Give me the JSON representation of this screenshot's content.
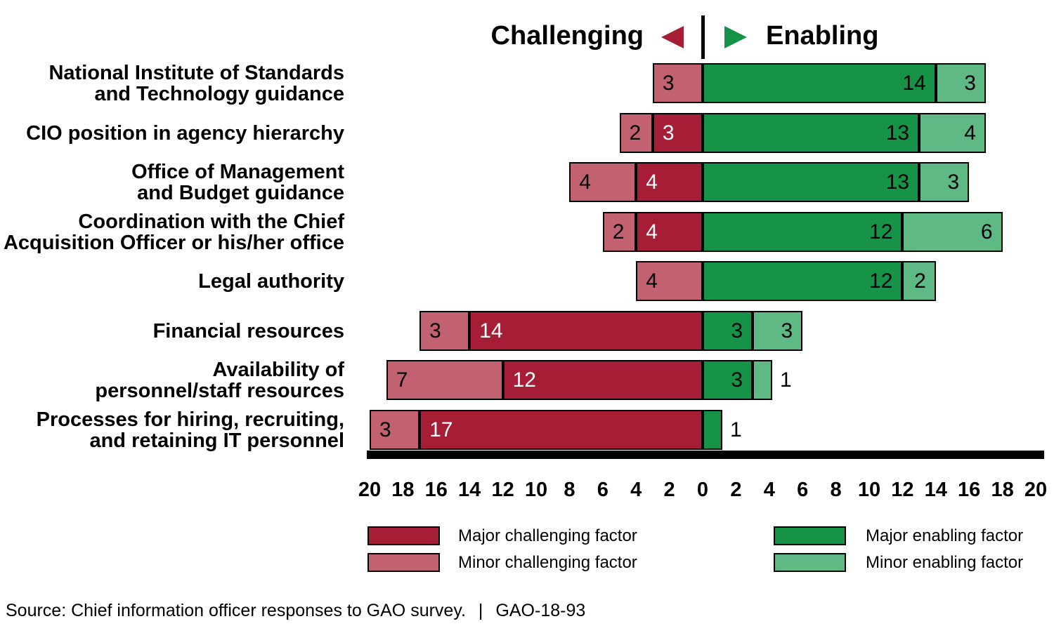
{
  "header": {
    "left_label": "Challenging",
    "right_label": "Enabling"
  },
  "colors": {
    "major_challenging": "#a51e35",
    "minor_challenging": "#c26270",
    "major_enabling": "#179347",
    "minor_enabling": "#5eb984",
    "axis": "#000000",
    "background": "#ffffff",
    "text": "#000000",
    "label_on_major_challenging": "#ffffff"
  },
  "chart_data": {
    "type": "bar",
    "subtype": "diverging-stacked-horizontal",
    "title": "Challenging / Enabling",
    "x_axis": {
      "range": [
        -20,
        20
      ],
      "tick_step": 2,
      "tick_labels": [
        "20",
        "18",
        "16",
        "14",
        "12",
        "10",
        "8",
        "6",
        "4",
        "2",
        "0",
        "2",
        "4",
        "6",
        "8",
        "10",
        "12",
        "14",
        "16",
        "18",
        "20"
      ]
    },
    "categories": [
      [
        "National Institute of Standards",
        "and Technology guidance"
      ],
      [
        "CIO position in agency hierarchy"
      ],
      [
        "Office of Management",
        "and Budget guidance"
      ],
      [
        "Coordination with the Chief",
        "Acquisition Officer or his/her office"
      ],
      [
        "Legal authority"
      ],
      [
        "Financial resources"
      ],
      [
        "Availability of",
        "personnel/staff resources"
      ],
      [
        "Processes for hiring, recruiting,",
        "and retaining IT personnel"
      ]
    ],
    "segment_order": [
      "minor_challenging",
      "major_challenging",
      "major_enabling",
      "minor_enabling"
    ],
    "series": [
      {
        "name": "Minor challenging factor",
        "key": "minor_challenging",
        "side": "challenging",
        "values": [
          3,
          2,
          4,
          2,
          4,
          3,
          7,
          3
        ]
      },
      {
        "name": "Major challenging factor",
        "key": "major_challenging",
        "side": "challenging",
        "values": [
          0,
          3,
          4,
          4,
          0,
          14,
          12,
          17
        ]
      },
      {
        "name": "Major enabling factor",
        "key": "major_enabling",
        "side": "enabling",
        "values": [
          14,
          13,
          13,
          12,
          12,
          3,
          3,
          1
        ]
      },
      {
        "name": "Minor enabling factor",
        "key": "minor_enabling",
        "side": "enabling",
        "values": [
          3,
          4,
          3,
          6,
          2,
          3,
          1,
          0
        ]
      }
    ],
    "legend_position": "bottom"
  },
  "legend": {
    "items": [
      {
        "label": "Major challenging factor",
        "key": "major_challenging",
        "column": 0,
        "row": 0
      },
      {
        "label": "Minor challenging factor",
        "key": "minor_challenging",
        "column": 0,
        "row": 1
      },
      {
        "label": "Major enabling factor",
        "key": "major_enabling",
        "column": 1,
        "row": 0
      },
      {
        "label": "Minor enabling factor",
        "key": "minor_enabling",
        "column": 1,
        "row": 1
      }
    ]
  },
  "source": {
    "text": "Source: Chief information officer responses to GAO survey.",
    "separator": "|",
    "report_number": "GAO-18-93"
  }
}
